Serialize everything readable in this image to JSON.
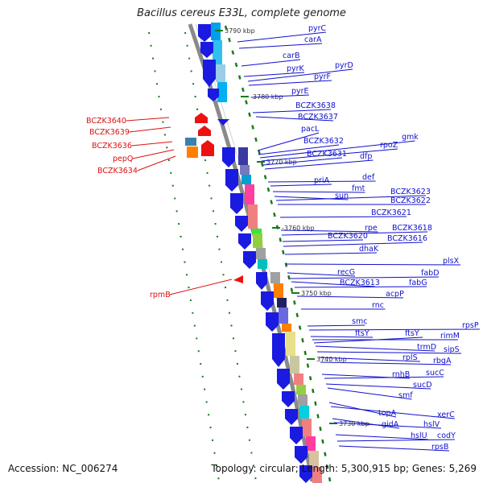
{
  "title": "Bacillus cereus E33L, complete genome",
  "footer": {
    "accession": "Accession: NC_006274",
    "summary": "Topology: circular; Length: 5,300,915 bp; Genes: 5,269"
  },
  "colors": {
    "forward_label": "#1010cc",
    "reverse_label": "#dd1111",
    "backbone": "#909090",
    "tick": "#1a7a1a"
  },
  "kbp_marks": [
    "3790 kbp",
    "3780 kbp",
    "3770 kbp",
    "3760 kbp",
    "3750 kbp",
    "3740 kbp",
    "3730 kbp"
  ],
  "forward_genes": [
    "pyrC",
    "carA",
    "carB",
    "pyrK",
    "pyrD",
    "pyrF",
    "pyrE",
    "BCZK3638",
    "BCZK3637",
    "pacL",
    "BCZK3632",
    "gmk",
    "rpoZ",
    "BCZK3631",
    "dfp",
    "def",
    "priA",
    "fmt",
    "sun",
    "BCZK3623",
    "BCZK3622",
    "BCZK3621",
    "rpe",
    "BCZK3618",
    "BCZK3620",
    "BCZK3616",
    "dhaK",
    "plsX",
    "recG",
    "fabD",
    "BCZK3613",
    "fabG",
    "acpP",
    "rnc",
    "smc",
    "rpsP",
    "ftsY",
    "rimM",
    "ftsY",
    "trmD",
    "sipS",
    "rplS",
    "rbgA",
    "rnhB",
    "sucC",
    "sucD",
    "smf",
    "topA",
    "xerC",
    "gidA",
    "hslV",
    "hslU",
    "codY",
    "rpsB"
  ],
  "reverse_genes": [
    "BCZK3640",
    "BCZK3639",
    "BCZK3636",
    "pepQ",
    "BCZK3634",
    "rpmB"
  ]
}
